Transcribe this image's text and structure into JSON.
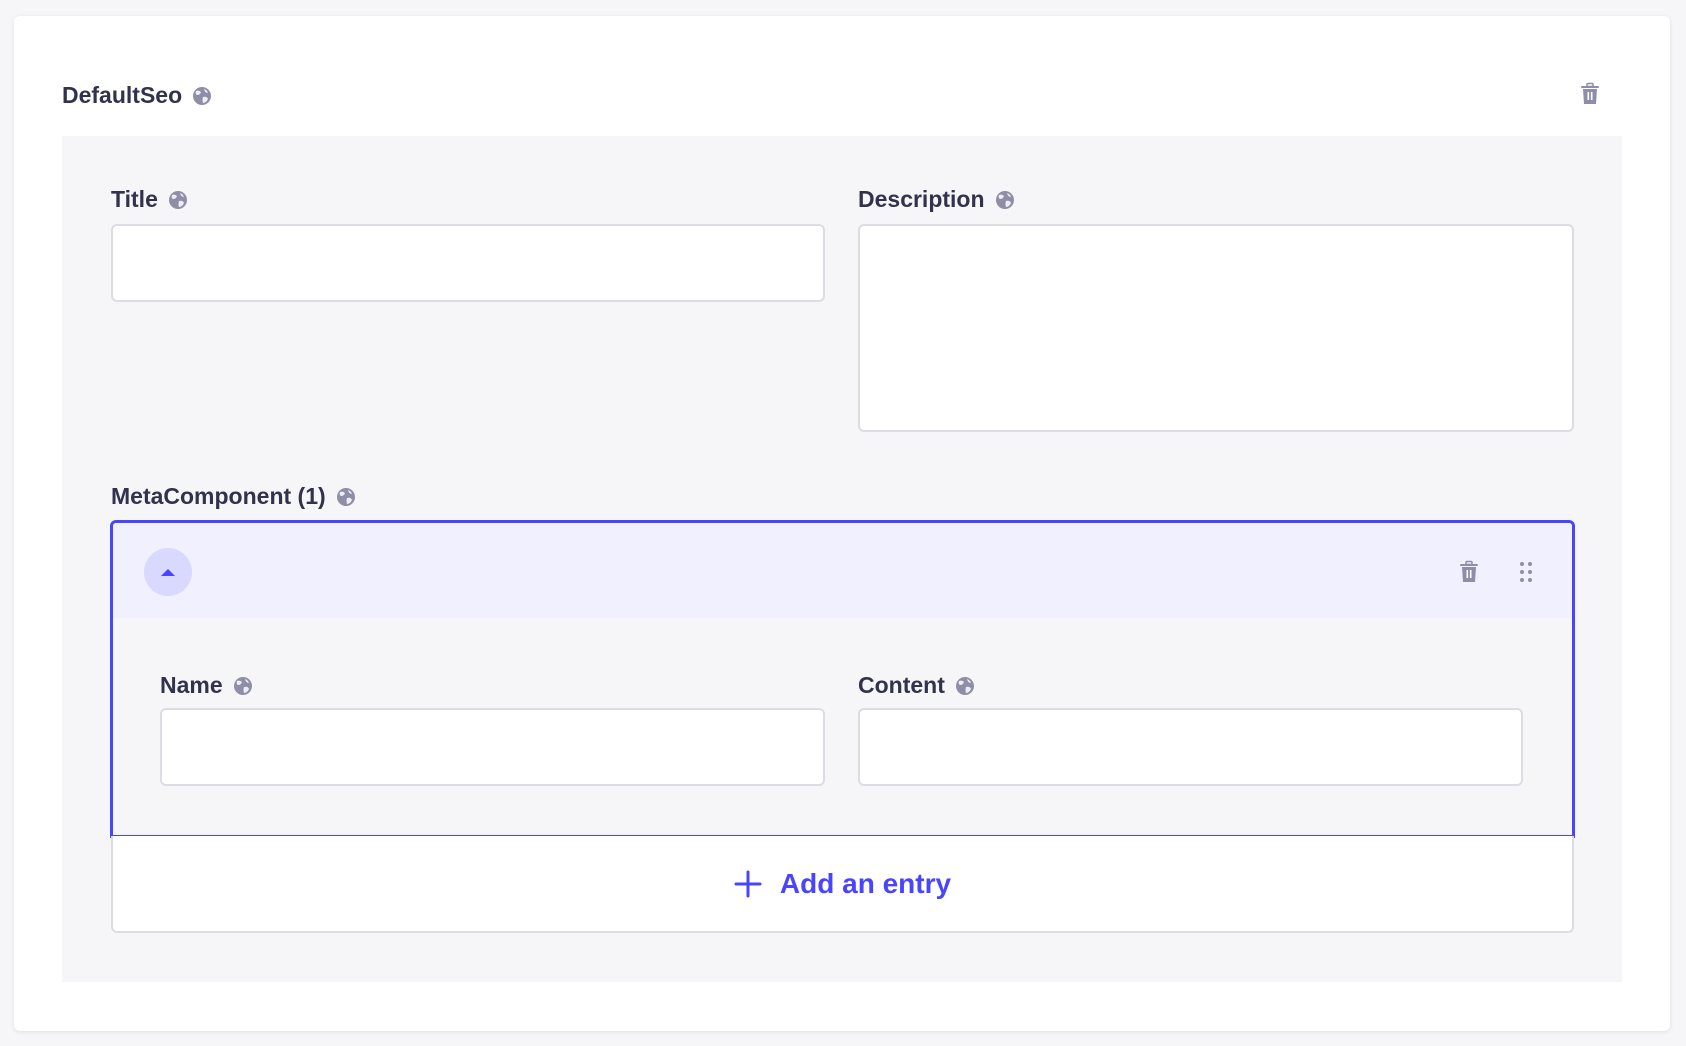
{
  "component": {
    "title": "DefaultSeo",
    "fields": {
      "title": {
        "label": "Title",
        "value": ""
      },
      "description": {
        "label": "Description",
        "value": ""
      }
    },
    "repeatable": {
      "label": "MetaComponent (1)",
      "entries": [
        {
          "fields": {
            "name": {
              "label": "Name",
              "value": ""
            },
            "content": {
              "label": "Content",
              "value": ""
            }
          }
        }
      ],
      "add_label": "Add an entry"
    }
  },
  "icons": {
    "localized": "globe-icon",
    "delete": "trash-icon",
    "drag": "drag-dots-icon",
    "collapse": "caret-up-icon",
    "add": "plus-icon"
  },
  "colors": {
    "accent": "#4945ff",
    "text": "#32324d",
    "icon": "#8e8ea9",
    "panel": "#f6f6f9",
    "entry_header": "#f0f0ff",
    "border": "#dcdce4"
  }
}
